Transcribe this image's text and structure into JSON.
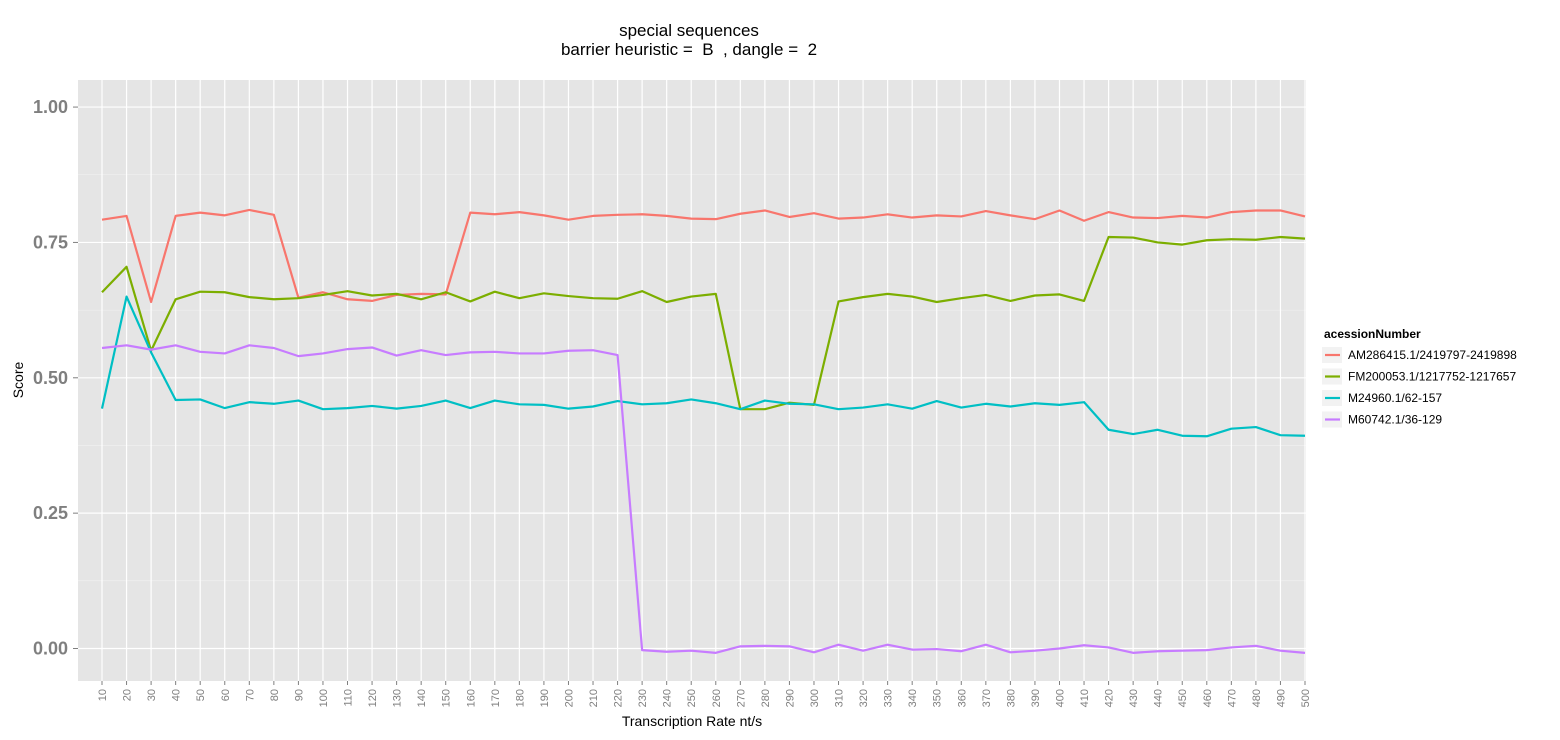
{
  "chart_data": {
    "type": "line",
    "title": "special sequences",
    "subtitle": "barrier heuristic =  B  , dangle =  2",
    "xlabel": "Transcription Rate nt/s",
    "ylabel": "Score",
    "ylim": [
      -0.06,
      1.05
    ],
    "y_ticks": [
      "0.00",
      "0.25",
      "0.50",
      "0.75",
      "1.00"
    ],
    "grid": true,
    "legend_title": "acessionNumber",
    "legend_position": "right",
    "x": [
      "10",
      "20",
      "30",
      "40",
      "50",
      "60",
      "70",
      "80",
      "90",
      "100",
      "110",
      "120",
      "130",
      "140",
      "150",
      "160",
      "170",
      "180",
      "190",
      "200",
      "210",
      "220",
      "230",
      "240",
      "250",
      "260",
      "270",
      "280",
      "290",
      "300",
      "310",
      "320",
      "330",
      "340",
      "350",
      "360",
      "370",
      "380",
      "390",
      "400",
      "410",
      "420",
      "430",
      "440",
      "450",
      "460",
      "470",
      "480",
      "490",
      "500"
    ],
    "series": [
      {
        "name": "AM286415.1/2419797-2419898",
        "color": "#F8766D",
        "values": [
          0.792,
          0.799,
          0.64,
          0.799,
          0.805,
          0.8,
          0.81,
          0.801,
          0.648,
          0.658,
          0.645,
          0.642,
          0.653,
          0.655,
          0.654,
          0.805,
          0.802,
          0.806,
          0.8,
          0.792,
          0.799,
          0.801,
          0.802,
          0.799,
          0.794,
          0.793,
          0.803,
          0.809,
          0.797,
          0.804,
          0.794,
          0.796,
          0.802,
          0.796,
          0.8,
          0.798,
          0.808,
          0.8,
          0.793,
          0.809,
          0.79,
          0.806,
          0.796,
          0.795,
          0.799,
          0.796,
          0.806,
          0.809,
          0.809,
          0.798
        ]
      },
      {
        "name": "FM200053.1/1217752-1217657",
        "color": "#7CAE00",
        "values": [
          0.658,
          0.705,
          0.55,
          0.645,
          0.659,
          0.658,
          0.649,
          0.645,
          0.647,
          0.653,
          0.66,
          0.652,
          0.655,
          0.645,
          0.658,
          0.641,
          0.659,
          0.647,
          0.656,
          0.651,
          0.647,
          0.646,
          0.66,
          0.64,
          0.65,
          0.655,
          0.442,
          0.442,
          0.454,
          0.45,
          0.641,
          0.649,
          0.655,
          0.65,
          0.64,
          0.647,
          0.653,
          0.642,
          0.652,
          0.654,
          0.642,
          0.76,
          0.759,
          0.75,
          0.746,
          0.754,
          0.756,
          0.755,
          0.76,
          0.757
        ]
      },
      {
        "name": "M24960.1/62-157",
        "color": "#00BFC4",
        "values": [
          0.443,
          0.65,
          0.547,
          0.459,
          0.46,
          0.444,
          0.455,
          0.452,
          0.458,
          0.442,
          0.444,
          0.448,
          0.443,
          0.448,
          0.458,
          0.444,
          0.458,
          0.451,
          0.45,
          0.443,
          0.447,
          0.457,
          0.451,
          0.453,
          0.46,
          0.453,
          0.442,
          0.458,
          0.452,
          0.451,
          0.442,
          0.445,
          0.451,
          0.443,
          0.457,
          0.445,
          0.452,
          0.447,
          0.453,
          0.45,
          0.455,
          0.404,
          0.396,
          0.404,
          0.393,
          0.392,
          0.406,
          0.409,
          0.394,
          0.393
        ]
      },
      {
        "name": "M60742.1/36-129",
        "color": "#C77CFF",
        "values": [
          0.555,
          0.56,
          0.552,
          0.56,
          0.548,
          0.545,
          0.56,
          0.555,
          0.54,
          0.545,
          0.553,
          0.556,
          0.541,
          0.551,
          0.542,
          0.547,
          0.548,
          0.545,
          0.545,
          0.55,
          0.551,
          0.542,
          -0.003,
          -0.006,
          -0.004,
          -0.008,
          0.004,
          0.005,
          0.004,
          -0.007,
          0.007,
          -0.004,
          0.007,
          -0.002,
          -0.001,
          -0.005,
          0.007,
          -0.007,
          -0.004,
          0.0,
          0.006,
          0.002,
          -0.008,
          -0.005,
          -0.004,
          -0.003,
          0.002,
          0.005,
          -0.004,
          -0.008
        ]
      }
    ]
  }
}
